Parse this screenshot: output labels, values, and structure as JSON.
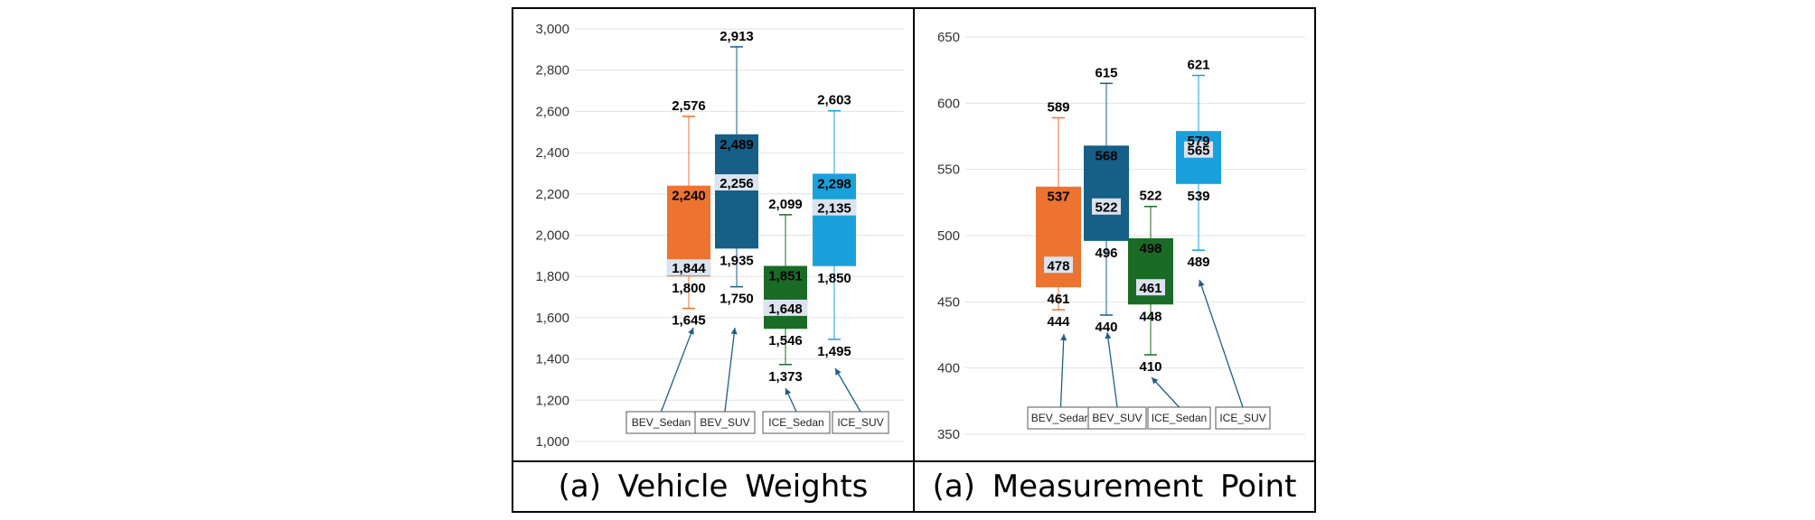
{
  "captions": {
    "a": "(a)  Vehicle  Weights",
    "b": "(a)  Measurement  Point"
  },
  "chart_data": [
    {
      "type": "box",
      "title": "(a)  Vehicle  Weights",
      "ylim": [
        1000,
        3000
      ],
      "yticks": [
        1000,
        1200,
        1400,
        1600,
        1800,
        2000,
        2200,
        2400,
        2600,
        2800,
        3000
      ],
      "ytick_labels": [
        "1,000",
        "1,200",
        "1,400",
        "1,600",
        "1,800",
        "2,000",
        "2,200",
        "2,400",
        "2,600",
        "2,800",
        "3,000"
      ],
      "series": [
        {
          "name": "BEV_Sedan",
          "color": "#ED7330",
          "min": 1645,
          "q1": 1800,
          "median": 1844,
          "q3": 2240,
          "max": 2576,
          "labels": {
            "min": "1,645",
            "q1": "1,800",
            "median": "1,844",
            "q3": "2,240",
            "max": "2,576"
          }
        },
        {
          "name": "BEV_SUV",
          "color": "#165F87",
          "min": 1750,
          "q1": 1935,
          "median": 2256,
          "q3": 2489,
          "max": 2913,
          "labels": {
            "min": "1,750",
            "q1": "1,935",
            "median": "2,256",
            "q3": "2,489",
            "max": "2,913"
          }
        },
        {
          "name": "ICE_Sedan",
          "color": "#1A6B26",
          "min": 1373,
          "q1": 1546,
          "median": 1648,
          "q3": 1851,
          "max": 2099,
          "labels": {
            "min": "1,373",
            "q1": "1,546",
            "median": "1,648",
            "q3": "1,851",
            "max": "2,099"
          }
        },
        {
          "name": "ICE_SUV",
          "color": "#1AA1DB",
          "min": 1495,
          "q1": 1850,
          "median": 2135,
          "q3": 2298,
          "max": 2603,
          "labels": {
            "min": "1,495",
            "q1": "1,850",
            "median": "2,135",
            "q3": "2,298",
            "max": "2,603"
          }
        }
      ]
    },
    {
      "type": "box",
      "title": "(a)  Measurement  Point",
      "ylim": [
        350,
        650
      ],
      "yticks": [
        350,
        400,
        450,
        500,
        550,
        600,
        650
      ],
      "ytick_labels": [
        "350",
        "400",
        "450",
        "500",
        "550",
        "600",
        "650"
      ],
      "series": [
        {
          "name": "BEV_Sedan",
          "color": "#ED7330",
          "min": 444,
          "q1": 461,
          "median": 478,
          "q3": 537,
          "max": 589,
          "labels": {
            "min": "444",
            "q1": "461",
            "median": "478",
            "q3": "537",
            "max": "589"
          }
        },
        {
          "name": "BEV_SUV",
          "color": "#165F87",
          "min": 440,
          "q1": 496,
          "median": 522,
          "q3": 568,
          "max": 615,
          "labels": {
            "min": "440",
            "q1": "496",
            "median": "522",
            "q3": "568",
            "max": "615"
          }
        },
        {
          "name": "ICE_Sedan",
          "color": "#1A6B26",
          "min": 410,
          "q1": 448,
          "median": 461,
          "q3": 498,
          "max": 522,
          "labels": {
            "min": "410",
            "q1": "448",
            "median": "461",
            "q3": "498",
            "max": "522"
          }
        },
        {
          "name": "ICE_SUV",
          "color": "#1AA1DB",
          "min": 489,
          "q1": 539,
          "median": 565,
          "q3": 579,
          "max": 621,
          "labels": {
            "min": "489",
            "q1": "539",
            "median": "565",
            "q3": "579",
            "max": "621"
          }
        }
      ]
    }
  ]
}
